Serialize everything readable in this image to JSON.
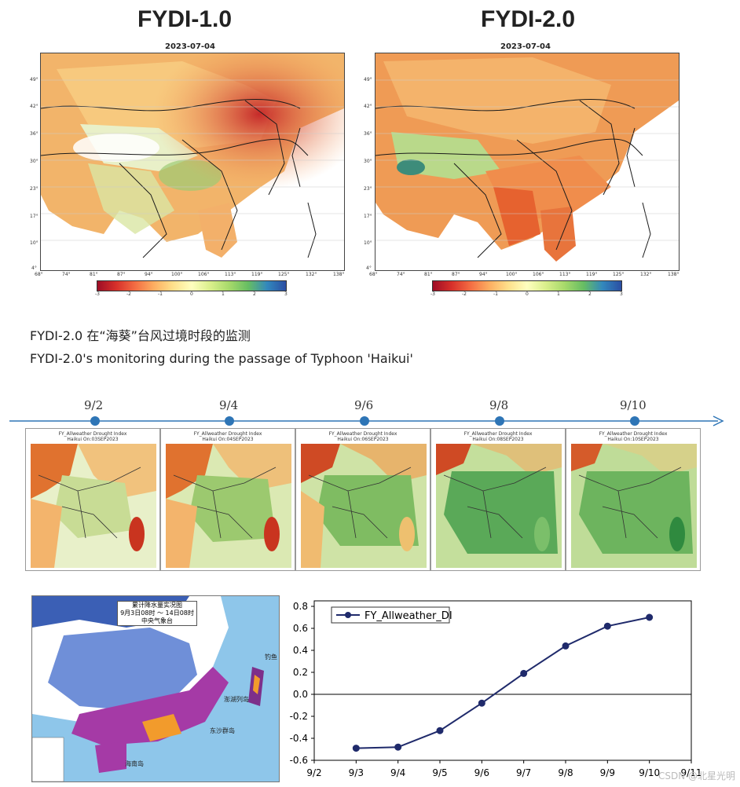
{
  "top_panels": {
    "left": {
      "title": "FYDI-1.0",
      "date": "2023-07-04"
    },
    "right": {
      "title": "FYDI-2.0",
      "date": "2023-07-04"
    },
    "lat_ticks": [
      "49°",
      "42°",
      "36°",
      "30°",
      "23°",
      "17°",
      "10°",
      "4°"
    ],
    "lon_ticks": [
      "68°",
      "74°",
      "81°",
      "87°",
      "94°",
      "100°",
      "106°",
      "113°",
      "119°",
      "125°",
      "132°",
      "138°"
    ],
    "colorbar_ticks": [
      "-3",
      "-2",
      "-1",
      "0",
      "1",
      "2",
      "3"
    ]
  },
  "captions": {
    "zh": "FYDI-2.0 在“海葵”台风过境时段的监测",
    "en": "FYDI-2.0's monitoring during the passage of Typhoon 'Haikui'"
  },
  "timeline": {
    "labels": [
      "9/2",
      "9/4",
      "9/6",
      "9/8",
      "9/10"
    ]
  },
  "small_maps": [
    {
      "title": "FY_Allweather Drought Index",
      "subtitle": "Haikui On:03SEP2023"
    },
    {
      "title": "FY_Allweather Drought Index",
      "subtitle": "Haikui On:04SEP2023"
    },
    {
      "title": "FY_Allweather Drought Index",
      "subtitle": "Haikui On:06SEP2023"
    },
    {
      "title": "FY_Allweather Drought Index",
      "subtitle": "Haikui On:08SEP2023"
    },
    {
      "title": "FY_Allweather Drought Index",
      "subtitle": "Haikui On:10SEP2023"
    }
  ],
  "rain_map": {
    "title": "累计降水量实况图",
    "subtitle": "9月3日08时 ～ 14日08时",
    "issuer": "中央气象台",
    "label_diaoyu": "钓鱼",
    "label_penghu": "澎湖列岛",
    "label_dongsha": "东沙群岛",
    "label_hainan": "海南岛"
  },
  "chart_data": {
    "type": "line",
    "series": [
      {
        "name": "FY_Allweather_DI",
        "x": [
          "9/3",
          "9/4",
          "9/5",
          "9/6",
          "9/7",
          "9/8",
          "9/9",
          "9/10"
        ],
        "values": [
          -0.49,
          -0.48,
          -0.33,
          -0.08,
          0.19,
          0.44,
          0.62,
          0.7
        ]
      }
    ],
    "categories": [
      "9/2",
      "9/3",
      "9/4",
      "9/5",
      "9/6",
      "9/7",
      "9/8",
      "9/9",
      "9/10",
      "9/11"
    ],
    "yticks": [
      "-0.6",
      "-0.4",
      "-0.2",
      "0.0",
      "0.2",
      "0.4",
      "0.6",
      "0.8"
    ],
    "ylim": [
      -0.6,
      0.85
    ],
    "zero_line": true,
    "legend_location": "top-left",
    "line_color": "#1f2a6b"
  },
  "watermark": "CSDN @北星光明"
}
